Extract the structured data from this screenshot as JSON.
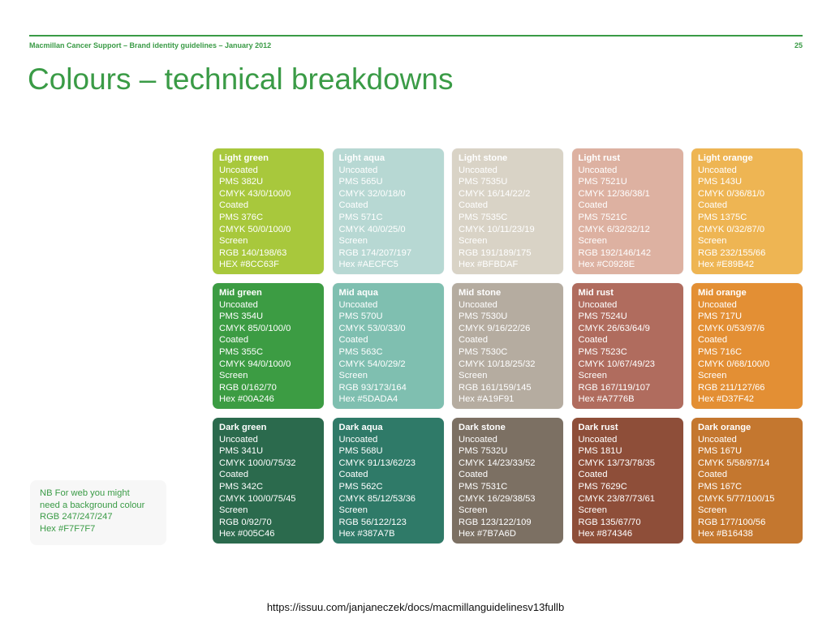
{
  "header": {
    "running_title": "Macmillan Cancer Support – Brand identity guidelines – January 2012",
    "page_number": "25"
  },
  "title": "Colours – technical breakdowns",
  "swatches": [
    {
      "name": "Light green",
      "color": "#8CC63F",
      "lines": [
        "Uncoated",
        "PMS 382U",
        "CMYK 43/0/100/0",
        "Coated",
        "PMS 376C",
        "CMYK 50/0/100/0",
        "Screen",
        "RGB 140/198/63",
        "HEX #8CC63F"
      ]
    },
    {
      "name": "Light aqua",
      "color": "#AECFC5",
      "lines": [
        "Uncoated",
        "PMS 565U",
        "CMYK 32/0/18/0",
        "Coated",
        "PMS 571C",
        "CMYK 40/0/25/0",
        "Screen",
        "RGB 174/207/197",
        "Hex #AECFC5"
      ]
    },
    {
      "name": "Light stone",
      "color": "#BFBDAF",
      "lines": [
        "Uncoated",
        "PMS 7535U",
        "CMYK 16/14/22/2",
        "Coated",
        "PMS 7535C",
        "CMYK 10/11/23/19",
        "Screen",
        "RGB 191/189/175",
        "Hex #BFBDAF"
      ]
    },
    {
      "name": "Light rust",
      "color": "#C0928E",
      "lines": [
        "Uncoated",
        "PMS 7521U",
        "CMYK 12/36/38/1",
        "Coated",
        "PMS 7521C",
        "CMYK 6/32/32/12",
        "Screen",
        "RGB 192/146/142",
        "Hex #C0928E"
      ]
    },
    {
      "name": "Light orange",
      "color": "#E89B42",
      "lines": [
        "Uncoated",
        "PMS 143U",
        "CMYK 0/36/81/0",
        "Coated",
        "PMS 1375C",
        "CMYK 0/32/87/0",
        "Screen",
        "RGB 232/155/66",
        "Hex #E89B42"
      ]
    },
    {
      "name": "Mid green",
      "color": "#00A246",
      "lines": [
        "Uncoated",
        "PMS 354U",
        "CMYK 85/0/100/0",
        "Coated",
        "PMS 355C",
        "CMYK 94/0/100/0",
        "Screen",
        "RGB 0/162/70",
        "Hex #00A246"
      ]
    },
    {
      "name": "Mid aqua",
      "color": "#5DADA4",
      "lines": [
        "Uncoated",
        "PMS 570U",
        "CMYK 53/0/33/0",
        "Coated",
        "PMS 563C",
        "CMYK 54/0/29/2",
        "Screen",
        "RGB 93/173/164",
        "Hex #5DADA4"
      ]
    },
    {
      "name": "Mid stone",
      "color": "#A19F91",
      "lines": [
        "Uncoated",
        "PMS 7530U",
        "CMYK 9/16/22/26",
        "Coated",
        "PMS 7530C",
        "CMYK 10/18/25/32",
        "Screen",
        "RGB 161/159/145",
        "Hex #A19F91"
      ]
    },
    {
      "name": "Mid rust",
      "color": "#A7776B",
      "lines": [
        "Uncoated",
        "PMS 7524U",
        "CMYK 26/63/64/9",
        "Coated",
        "PMS 7523C",
        "CMYK 10/67/49/23",
        "Screen",
        "RGB 167/119/107",
        "Hex #A7776B"
      ]
    },
    {
      "name": "Mid orange",
      "color": "#D37F42",
      "lines": [
        "Uncoated",
        "PMS 717U",
        "CMYK 0/53/97/6",
        "Coated",
        "PMS 716C",
        "CMYK 0/68/100/0",
        "Screen",
        "RGB 211/127/66",
        "Hex #D37F42"
      ]
    },
    {
      "name": "Dark green",
      "color": "#005C46",
      "lines": [
        "Uncoated",
        "PMS 341U",
        "CMYK 100/0/75/32",
        "Coated",
        "PMS 342C",
        "CMYK 100/0/75/45",
        "Screen",
        "RGB 0/92/70",
        "Hex #005C46"
      ]
    },
    {
      "name": "Dark aqua",
      "color": "#387A7B",
      "lines": [
        "Uncoated",
        "PMS 568U",
        "CMYK 91/13/62/23",
        "Coated",
        "PMS 562C",
        "CMYK 85/12/53/36",
        "Screen",
        "RGB 56/122/123",
        "Hex #387A7B"
      ]
    },
    {
      "name": "Dark stone",
      "color": "#7B7A6D",
      "lines": [
        "Uncoated",
        "PMS 7532U",
        "CMYK 14/23/33/52",
        "Coated",
        "PMS 7531C",
        "CMYK 16/29/38/53",
        "Screen",
        "RGB 123/122/109",
        "Hex #7B7A6D"
      ]
    },
    {
      "name": "Dark rust",
      "color": "#874346",
      "lines": [
        "Uncoated",
        "PMS 181U",
        "CMYK 13/73/78/35",
        "Coated",
        "PMS 7629C",
        "CMYK 23/87/73/61",
        "Screen",
        "RGB 135/67/70",
        "Hex #874346"
      ]
    },
    {
      "name": "Dark orange",
      "color": "#B16438",
      "lines": [
        "Uncoated",
        "PMS 167U",
        "CMYK 5/58/97/14",
        "Coated",
        "PMS 167C",
        "CMYK 5/77/100/15",
        "Screen",
        "RGB 177/100/56",
        "Hex #B16438"
      ]
    }
  ],
  "note": {
    "lines": [
      "NB For web you might",
      "need a background colour",
      "RGB 247/247/247",
      "Hex #F7F7F7"
    ]
  },
  "source_url": "https://issuu.com/janjaneczek/docs/macmillanguidelinesv13fullb",
  "colors": {
    "brand_green": "#3A9B46",
    "note_background": "#F7F7F7"
  }
}
